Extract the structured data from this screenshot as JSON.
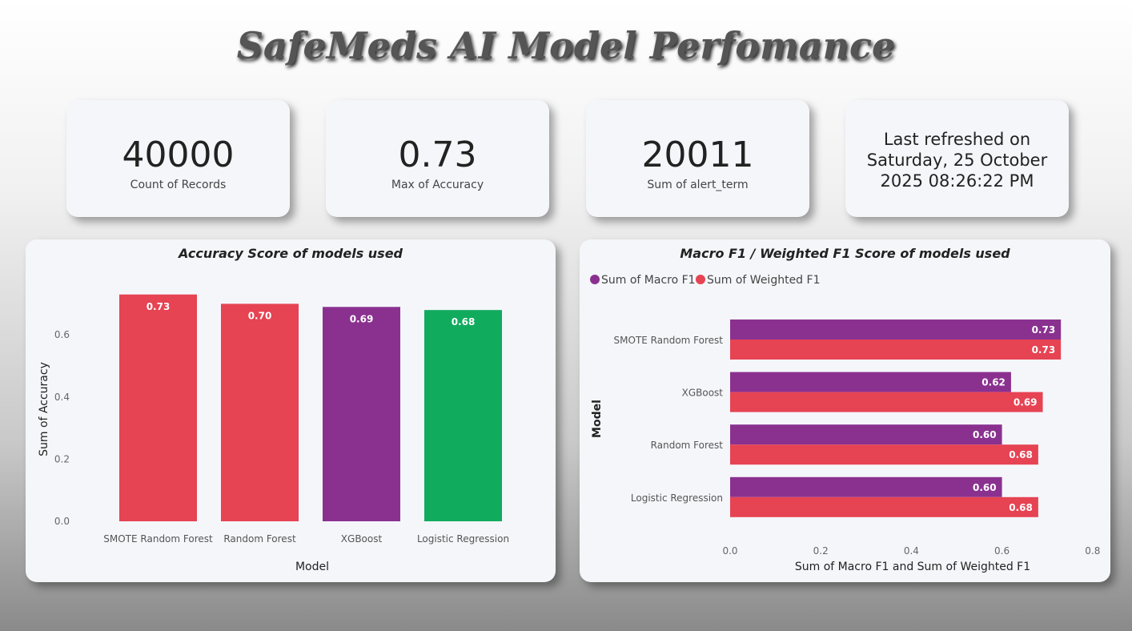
{
  "title": "SafeMeds AI Model Perfomance",
  "cards": [
    {
      "value": "40000",
      "label": "Count of Records"
    },
    {
      "value": "0.73",
      "label": "Max of Accuracy"
    },
    {
      "value": "20011",
      "label": "Sum of alert_term"
    }
  ],
  "refresh": {
    "line1": "Last refreshed on",
    "line2": "Saturday, 25 October",
    "line3": "2025 08:26:22 PM"
  },
  "chart_data": [
    {
      "type": "bar",
      "title": "Accuracy Score of models used",
      "xlabel": "Model",
      "ylabel": "Sum of Accuracy",
      "categories": [
        "SMOTE Random Forest",
        "Random Forest",
        "XGBoost",
        "Logistic Regression"
      ],
      "values": [
        0.73,
        0.7,
        0.69,
        0.68
      ],
      "data_labels": [
        "0.73",
        "0.70",
        "0.69",
        "0.68"
      ],
      "colors": [
        "#e64353",
        "#e64353",
        "#8a3190",
        "#11ab5e"
      ],
      "yticks": [
        "0.0",
        "0.2",
        "0.4",
        "0.6"
      ],
      "ylim": [
        0,
        0.75
      ],
      "grid": false
    },
    {
      "type": "bar",
      "orientation": "horizontal",
      "title": "Macro F1 / Weighted F1 Score of models used",
      "xlabel": "Sum of Macro F1 and Sum of Weighted F1",
      "ylabel": "Model",
      "legend": "top-left",
      "categories": [
        "SMOTE Random Forest",
        "XGBoost",
        "Random Forest",
        "Logistic Regression"
      ],
      "series": [
        {
          "name": "Sum of Macro F1",
          "color": "#8a3190",
          "values": [
            0.73,
            0.62,
            0.6,
            0.6
          ],
          "labels": [
            "0.73",
            "0.62",
            "0.60",
            "0.60"
          ]
        },
        {
          "name": "Sum of Weighted F1",
          "color": "#e64353",
          "values": [
            0.73,
            0.69,
            0.68,
            0.68
          ],
          "labels": [
            "0.73",
            "0.69",
            "0.68",
            "0.68"
          ]
        }
      ],
      "xticks": [
        "0.0",
        "0.2",
        "0.4",
        "0.6",
        "0.8"
      ],
      "xlim": [
        0,
        0.8
      ],
      "grid": false
    }
  ]
}
